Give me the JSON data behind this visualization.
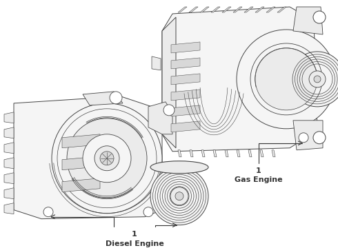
{
  "bg_color": "#ffffff",
  "line_color": "#333333",
  "label1_num": "1",
  "label1_text": "Gas Engine",
  "label2_num": "1",
  "label2_text": "Diesel Engine",
  "edge_color": "#444444",
  "edge_lw": 0.7,
  "fill_light": "#f5f5f5",
  "fill_mid": "#ebebeb",
  "fill_dark": "#d8d8d8"
}
